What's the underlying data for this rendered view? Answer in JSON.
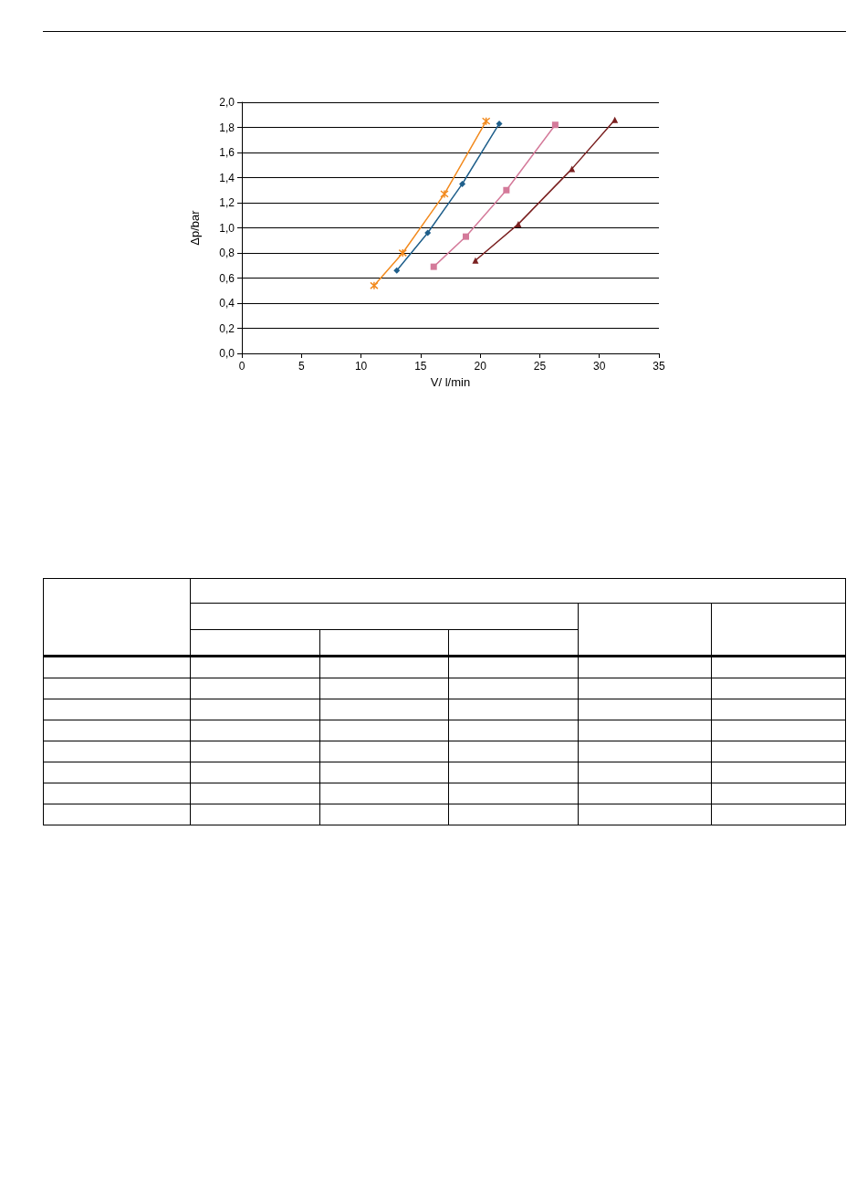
{
  "chart_data": {
    "type": "line",
    "xlabel": "V/ l/min",
    "ylabel": "Δp/bar",
    "series": [
      {
        "color": "#f28a1e",
        "marker": "cross",
        "x": [
          11.1,
          13.5,
          17.0,
          20.5
        ],
        "values": [
          0.54,
          0.8,
          1.27,
          1.85
        ]
      },
      {
        "color": "#1f5f8b",
        "marker": "diamond",
        "x": [
          13.0,
          15.6,
          18.5,
          21.6
        ],
        "values": [
          0.66,
          0.96,
          1.35,
          1.83
        ]
      },
      {
        "color": "#d47a9a",
        "marker": "square",
        "x": [
          16.1,
          18.8,
          22.2,
          26.3
        ],
        "values": [
          0.69,
          0.93,
          1.3,
          1.82
        ]
      },
      {
        "color": "#7a2020",
        "marker": "triangle",
        "x": [
          19.6,
          23.2,
          27.7,
          31.3
        ],
        "values": [
          0.74,
          1.03,
          1.47,
          1.86
        ]
      }
    ],
    "xlim": [
      0,
      35
    ],
    "xticks": [
      0,
      5,
      10,
      15,
      20,
      25,
      30,
      35
    ],
    "ylim": [
      0,
      2
    ],
    "yticks": [
      {
        "value": 0,
        "label": "0,0"
      },
      {
        "value": 0.2,
        "label": "0,2"
      },
      {
        "value": 0.4,
        "label": "0,4"
      },
      {
        "value": 0.6,
        "label": "0,6"
      },
      {
        "value": 0.8,
        "label": "0,8"
      },
      {
        "value": 1.0,
        "label": "1,0"
      },
      {
        "value": 1.2,
        "label": "1,2"
      },
      {
        "value": 1.4,
        "label": "1,4"
      },
      {
        "value": 1.6,
        "label": "1,6"
      },
      {
        "value": 1.8,
        "label": "1,8"
      },
      {
        "value": 2.0,
        "label": "2,0"
      }
    ],
    "grid": "y",
    "line_style": "solid"
  }
}
